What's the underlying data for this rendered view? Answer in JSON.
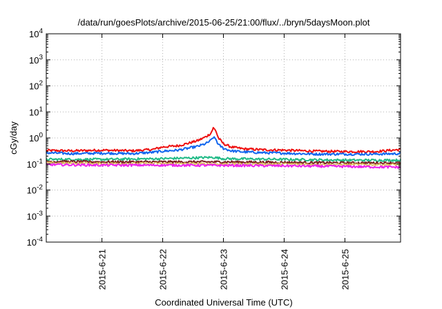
{
  "chart_data": {
    "type": "line",
    "title": "/data/run/goesPlots/archive/2015-06-25/21:00/flux/../bryn/5daysMoon.plot",
    "xlabel": "Coordinated Universal Time (UTC)",
    "ylabel": "cGy/day",
    "yscale": "log",
    "ylim": [
      0.0001,
      10000
    ],
    "y_ticks": [
      {
        "value": 0.0001,
        "base": "10",
        "exp": "-4"
      },
      {
        "value": 0.001,
        "base": "10",
        "exp": "-3"
      },
      {
        "value": 0.01,
        "base": "10",
        "exp": "-2"
      },
      {
        "value": 0.1,
        "base": "10",
        "exp": "-1"
      },
      {
        "value": 1,
        "base": "10",
        "exp": "0"
      },
      {
        "value": 10,
        "base": "10",
        "exp": "1"
      },
      {
        "value": 100,
        "base": "10",
        "exp": "2"
      },
      {
        "value": 1000,
        "base": "10",
        "exp": "3"
      },
      {
        "value": 10000,
        "base": "10",
        "exp": "4"
      }
    ],
    "xlim": [
      "2015-06-20T02:00",
      "2015-06-25T22:00"
    ],
    "x_ticks": [
      {
        "value": "2015-06-21T00:00",
        "label": "2015-6-21"
      },
      {
        "value": "2015-06-22T00:00",
        "label": "2015-6-22"
      },
      {
        "value": "2015-06-23T00:00",
        "label": "2015-6-23"
      },
      {
        "value": "2015-06-24T00:00",
        "label": "2015-6-24"
      },
      {
        "value": "2015-06-25T00:00",
        "label": "2015-6-25"
      }
    ],
    "grid": true,
    "series": [
      {
        "color": "#ee1111",
        "width": 2,
        "points": [
          [
            "2015-06-20T02:00",
            0.33
          ],
          [
            "2015-06-20T12:00",
            0.32
          ],
          [
            "2015-06-21T00:00",
            0.34
          ],
          [
            "2015-06-21T12:00",
            0.32
          ],
          [
            "2015-06-21T20:00",
            0.36
          ],
          [
            "2015-06-22T00:00",
            0.45
          ],
          [
            "2015-06-22T06:00",
            0.5
          ],
          [
            "2015-06-22T10:00",
            0.62
          ],
          [
            "2015-06-22T14:00",
            0.8
          ],
          [
            "2015-06-22T17:00",
            1.1
          ],
          [
            "2015-06-22T19:00",
            1.5
          ],
          [
            "2015-06-22T20:00",
            2.4
          ],
          [
            "2015-06-22T21:00",
            1.9
          ],
          [
            "2015-06-22T22:00",
            1.0
          ],
          [
            "2015-06-23T00:00",
            0.6
          ],
          [
            "2015-06-23T03:00",
            0.45
          ],
          [
            "2015-06-23T08:00",
            0.38
          ],
          [
            "2015-06-23T16:00",
            0.35
          ],
          [
            "2015-06-24T00:00",
            0.34
          ],
          [
            "2015-06-24T12:00",
            0.31
          ],
          [
            "2015-06-25T00:00",
            0.3
          ],
          [
            "2015-06-25T12:00",
            0.3
          ],
          [
            "2015-06-25T22:00",
            0.36
          ]
        ]
      },
      {
        "color": "#1166ee",
        "width": 2,
        "points": [
          [
            "2015-06-20T02:00",
            0.27
          ],
          [
            "2015-06-20T12:00",
            0.25
          ],
          [
            "2015-06-21T00:00",
            0.26
          ],
          [
            "2015-06-21T12:00",
            0.25
          ],
          [
            "2015-06-21T20:00",
            0.28
          ],
          [
            "2015-06-22T00:00",
            0.31
          ],
          [
            "2015-06-22T06:00",
            0.34
          ],
          [
            "2015-06-22T10:00",
            0.4
          ],
          [
            "2015-06-22T14:00",
            0.48
          ],
          [
            "2015-06-22T17:00",
            0.6
          ],
          [
            "2015-06-22T19:00",
            0.8
          ],
          [
            "2015-06-22T20:00",
            1.05
          ],
          [
            "2015-06-22T21:00",
            0.9
          ],
          [
            "2015-06-22T22:00",
            0.55
          ],
          [
            "2015-06-23T00:00",
            0.4
          ],
          [
            "2015-06-23T03:00",
            0.32
          ],
          [
            "2015-06-23T08:00",
            0.29
          ],
          [
            "2015-06-23T16:00",
            0.27
          ],
          [
            "2015-06-24T00:00",
            0.26
          ],
          [
            "2015-06-24T12:00",
            0.24
          ],
          [
            "2015-06-25T00:00",
            0.24
          ],
          [
            "2015-06-25T12:00",
            0.24
          ],
          [
            "2015-06-25T22:00",
            0.25
          ]
        ]
      },
      {
        "color": "#22bb88",
        "width": 2,
        "points": [
          [
            "2015-06-20T02:00",
            0.15
          ],
          [
            "2015-06-21T00:00",
            0.15
          ],
          [
            "2015-06-22T00:00",
            0.16
          ],
          [
            "2015-06-22T20:00",
            0.18
          ],
          [
            "2015-06-23T00:00",
            0.16
          ],
          [
            "2015-06-24T00:00",
            0.15
          ],
          [
            "2015-06-25T00:00",
            0.14
          ],
          [
            "2015-06-25T22:00",
            0.14
          ]
        ]
      },
      {
        "color": "#7a1f1f",
        "width": 2,
        "points": [
          [
            "2015-06-20T02:00",
            0.125
          ],
          [
            "2015-06-21T00:00",
            0.12
          ],
          [
            "2015-06-22T00:00",
            0.12
          ],
          [
            "2015-06-23T00:00",
            0.12
          ],
          [
            "2015-06-24T00:00",
            0.115
          ],
          [
            "2015-06-25T00:00",
            0.11
          ],
          [
            "2015-06-25T22:00",
            0.11
          ]
        ]
      },
      {
        "color": "#ddbb55",
        "width": 1.5,
        "points": [
          [
            "2015-06-20T02:00",
            0.11
          ],
          [
            "2015-06-21T00:00",
            0.105
          ],
          [
            "2015-06-22T00:00",
            0.105
          ],
          [
            "2015-06-23T00:00",
            0.1
          ],
          [
            "2015-06-24T00:00",
            0.1
          ],
          [
            "2015-06-25T00:00",
            0.095
          ],
          [
            "2015-06-25T22:00",
            0.095
          ]
        ]
      },
      {
        "color": "#ee22ee",
        "width": 2,
        "points": [
          [
            "2015-06-20T02:00",
            0.095
          ],
          [
            "2015-06-21T00:00",
            0.09
          ],
          [
            "2015-06-22T00:00",
            0.09
          ],
          [
            "2015-06-23T00:00",
            0.088
          ],
          [
            "2015-06-24T00:00",
            0.085
          ],
          [
            "2015-06-25T00:00",
            0.08
          ],
          [
            "2015-06-25T22:00",
            0.075
          ]
        ]
      }
    ]
  }
}
